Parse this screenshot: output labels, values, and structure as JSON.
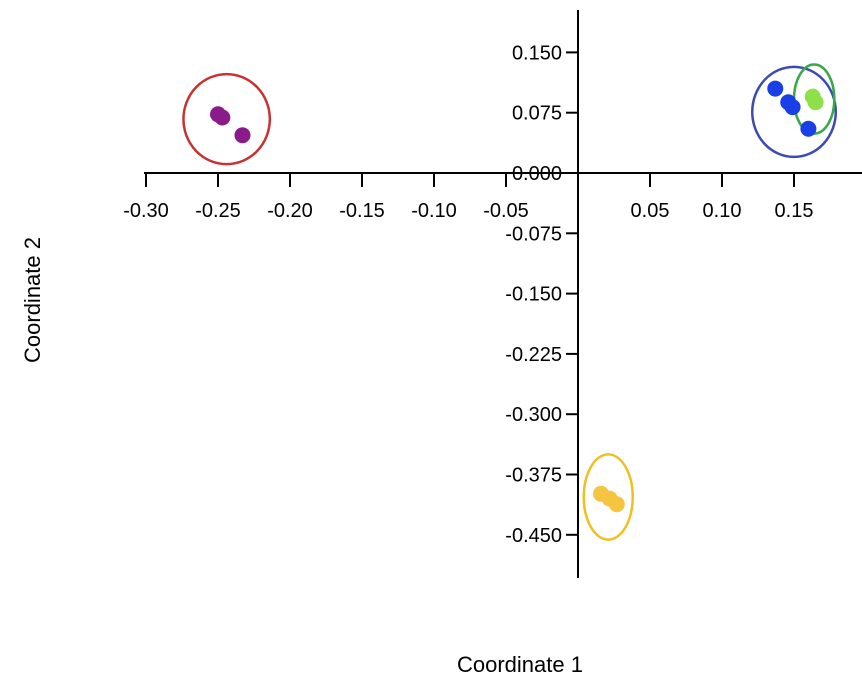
{
  "chart_data": {
    "type": "scatter",
    "title": "",
    "xlabel": "Coordinate 1",
    "ylabel": "Coordinate 2",
    "xlim": [
      -0.3,
      0.18
    ],
    "ylim": [
      -0.5,
      0.2
    ],
    "x_ticks": [
      {
        "value": -0.3,
        "label": "-0.30"
      },
      {
        "value": -0.25,
        "label": "-0.25"
      },
      {
        "value": -0.2,
        "label": "-0.20"
      },
      {
        "value": -0.15,
        "label": "-0.15"
      },
      {
        "value": -0.1,
        "label": "-0.10"
      },
      {
        "value": -0.05,
        "label": "-0.05"
      },
      {
        "value": 0.05,
        "label": "0.05"
      },
      {
        "value": 0.1,
        "label": "0.10"
      },
      {
        "value": 0.15,
        "label": "0.15"
      }
    ],
    "y_ticks": [
      {
        "value": 0.15,
        "label": "0.150"
      },
      {
        "value": 0.075,
        "label": "0.075"
      },
      {
        "value": 0.0,
        "label": "0.000"
      },
      {
        "value": -0.075,
        "label": "-0.075"
      },
      {
        "value": -0.15,
        "label": "-0.150"
      },
      {
        "value": -0.225,
        "label": "-0.225"
      },
      {
        "value": -0.3,
        "label": "-0.300"
      },
      {
        "value": -0.375,
        "label": "-0.375"
      },
      {
        "value": -0.45,
        "label": "-0.450"
      }
    ],
    "grid": false,
    "series": [
      {
        "color": "#8b1a8b",
        "points": [
          [
            -0.25,
            0.073
          ],
          [
            -0.247,
            0.069
          ],
          [
            -0.233,
            0.047
          ]
        ]
      },
      {
        "color": "#1a3fe6",
        "points": [
          [
            0.137,
            0.105
          ],
          [
            0.146,
            0.088
          ],
          [
            0.149,
            0.082
          ],
          [
            0.16,
            0.055
          ]
        ]
      },
      {
        "color": "#8ee04a",
        "points": [
          [
            0.163,
            0.095
          ],
          [
            0.165,
            0.088
          ]
        ]
      },
      {
        "color": "#f5c542",
        "points": [
          [
            0.016,
            -0.399
          ],
          [
            0.022,
            -0.405
          ],
          [
            0.027,
            -0.412
          ]
        ]
      }
    ],
    "ellipses": [
      {
        "color": "#c83232",
        "cx": -0.244,
        "cy": 0.067,
        "rx": 0.03,
        "ry": 0.056
      },
      {
        "color": "#3b4bb0",
        "cx": 0.15,
        "cy": 0.076,
        "rx": 0.029,
        "ry": 0.056
      },
      {
        "color": "#3aa84a",
        "cx": 0.164,
        "cy": 0.092,
        "rx": 0.014,
        "ry": 0.043
      },
      {
        "color": "#f0c020",
        "cx": 0.021,
        "cy": -0.403,
        "rx": 0.017,
        "ry": 0.053
      }
    ]
  }
}
